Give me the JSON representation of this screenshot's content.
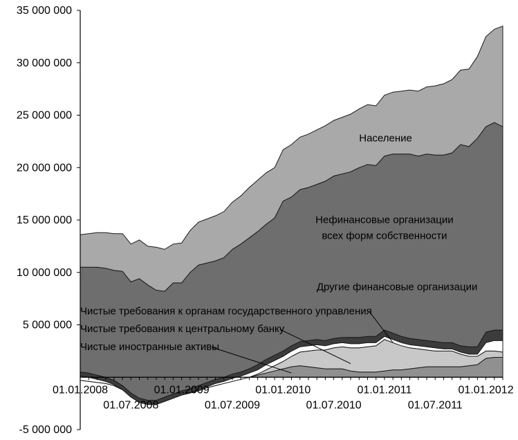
{
  "chart_data": {
    "type": "area",
    "stacked": true,
    "ylim": [
      -5000000,
      35000000
    ],
    "y_ticks": [
      {
        "value": 35000000,
        "label": "35 000 000"
      },
      {
        "value": 30000000,
        "label": "30 000 000"
      },
      {
        "value": 25000000,
        "label": "25 000 000"
      },
      {
        "value": 20000000,
        "label": "20 000 000"
      },
      {
        "value": 15000000,
        "label": "15 000 000"
      },
      {
        "value": 10000000,
        "label": "10 000 000"
      },
      {
        "value": 5000000,
        "label": "5 000 000"
      },
      {
        "value": -5000000,
        "label": "-5 000 000"
      }
    ],
    "x": [
      "01.01.2008",
      "01.02.2008",
      "01.03.2008",
      "01.04.2008",
      "01.05.2008",
      "01.06.2008",
      "01.07.2008",
      "01.08.2008",
      "01.09.2008",
      "01.10.2008",
      "01.11.2008",
      "01.12.2008",
      "01.01.2009",
      "01.02.2009",
      "01.03.2009",
      "01.04.2009",
      "01.05.2009",
      "01.06.2009",
      "01.07.2009",
      "01.08.2009",
      "01.09.2009",
      "01.10.2009",
      "01.11.2009",
      "01.12.2009",
      "01.01.2010",
      "01.02.2010",
      "01.03.2010",
      "01.04.2010",
      "01.05.2010",
      "01.06.2010",
      "01.07.2010",
      "01.08.2010",
      "01.09.2010",
      "01.10.2010",
      "01.11.2010",
      "01.12.2010",
      "01.01.2011",
      "01.02.2011",
      "01.03.2011",
      "01.04.2011",
      "01.05.2011",
      "01.06.2011",
      "01.07.2011",
      "01.08.2011",
      "01.09.2011",
      "01.10.2011",
      "01.11.2011",
      "01.12.2011",
      "01.01.2012",
      "01.02.2012",
      "01.03.2012"
    ],
    "x_ticks_upper": [
      "01.01.2008",
      "01.01.2009",
      "01.01.2010",
      "01.01.2011",
      "01.01.2012"
    ],
    "x_ticks_lower": [
      "01.07.2008",
      "01.07.2009",
      "01.07.2010",
      "01.07.2011"
    ],
    "series": [
      {
        "name": "Чистые иностранные активы",
        "color": "#909090",
        "values": [
          -300000,
          -400000,
          -500000,
          -600000,
          -800000,
          -1200000,
          -1800000,
          -2200000,
          -2400000,
          -2500000,
          -2300000,
          -2000000,
          -1700000,
          -1500000,
          -1300000,
          -1000000,
          -800000,
          -600000,
          -400000,
          -200000,
          0,
          200000,
          400000,
          600000,
          800000,
          1000000,
          1100000,
          1000000,
          900000,
          800000,
          800000,
          800000,
          600000,
          500000,
          500000,
          500000,
          600000,
          700000,
          700000,
          800000,
          900000,
          1000000,
          1000000,
          1000000,
          1000000,
          1000000,
          1100000,
          1200000,
          1800000,
          1900000,
          1900000
        ]
      },
      {
        "name": "Чистые требования к центральному банку",
        "color": "#c8c8c8",
        "values": [
          0,
          0,
          0,
          0,
          0,
          0,
          0,
          0,
          0,
          0,
          0,
          0,
          0,
          0,
          0,
          0,
          0,
          0,
          0,
          0,
          0,
          100000,
          300000,
          500000,
          700000,
          1000000,
          1300000,
          1500000,
          1700000,
          1800000,
          2000000,
          2100000,
          2200000,
          2300000,
          2400000,
          2500000,
          3000000,
          2600000,
          2300000,
          2000000,
          1800000,
          1600000,
          1500000,
          1500000,
          1500000,
          1200000,
          900000,
          800000,
          700000,
          600000,
          500000
        ]
      },
      {
        "name": "Чистые требования к органам государственного управления",
        "color": "#ffffff",
        "values": [
          400000,
          400000,
          300000,
          200000,
          100000,
          0,
          -100000,
          -200000,
          -200000,
          -100000,
          0,
          0,
          0,
          0,
          100000,
          100000,
          200000,
          200000,
          300000,
          300000,
          400000,
          400000,
          500000,
          500000,
          500000,
          500000,
          500000,
          500000,
          500000,
          400000,
          400000,
          400000,
          400000,
          400000,
          400000,
          300000,
          300000,
          300000,
          300000,
          300000,
          300000,
          300000,
          300000,
          200000,
          200000,
          200000,
          200000,
          200000,
          800000,
          1000000,
          1100000
        ]
      },
      {
        "name": "Другие финансовые организации",
        "color": "#3c3c3c",
        "values": [
          400000,
          400000,
          400000,
          400000,
          400000,
          400000,
          400000,
          400000,
          400000,
          400000,
          400000,
          400000,
          400000,
          400000,
          400000,
          400000,
          400000,
          400000,
          400000,
          400000,
          400000,
          500000,
          500000,
          500000,
          500000,
          500000,
          500000,
          500000,
          500000,
          500000,
          500000,
          500000,
          600000,
          600000,
          600000,
          600000,
          600000,
          600000,
          600000,
          600000,
          600000,
          600000,
          600000,
          600000,
          600000,
          600000,
          700000,
          700000,
          1000000,
          1000000,
          1000000
        ]
      },
      {
        "name": "Нефинансовые организации всех форм собственности",
        "color": "#6e6e6e",
        "values": [
          10000000,
          10100000,
          10300000,
          10400000,
          10500000,
          10900000,
          10600000,
          11400000,
          11000000,
          10500000,
          10100000,
          10600000,
          10300000,
          11100000,
          11500000,
          11400000,
          11300000,
          11400000,
          11900000,
          12200000,
          12500000,
          12700000,
          12900000,
          13100000,
          14300000,
          14200000,
          14500000,
          14600000,
          14800000,
          15200000,
          15500000,
          15600000,
          15800000,
          16200000,
          16400000,
          16300000,
          16600000,
          17100000,
          17400000,
          17600000,
          17500000,
          17800000,
          17800000,
          17900000,
          18100000,
          19200000,
          19100000,
          19900000,
          19600000,
          19800000,
          19400000
        ]
      },
      {
        "name": "Население",
        "color": "#a9a9a9",
        "values": [
          3100000,
          3200000,
          3300000,
          3400000,
          3500000,
          3600000,
          3600000,
          3700000,
          3700000,
          4100000,
          4000000,
          3700000,
          3800000,
          4000000,
          4100000,
          4200000,
          4300000,
          4400000,
          4500000,
          4600000,
          4800000,
          4900000,
          4900000,
          4800000,
          4900000,
          5000000,
          5000000,
          5100000,
          5200000,
          5300000,
          5300000,
          5400000,
          5500000,
          5600000,
          5700000,
          5700000,
          5800000,
          5900000,
          6000000,
          6100000,
          6200000,
          6400000,
          6600000,
          6800000,
          7000000,
          7100000,
          7400000,
          7800000,
          8600000,
          8900000,
          9600000
        ]
      }
    ],
    "annotations": [
      {
        "text": "Население",
        "x": "01.10.2010",
        "y": 22500000,
        "anchor": "start"
      },
      {
        "text": "Нефинансовые организации",
        "x": "01.01.2011",
        "y": 14700000,
        "anchor": "middle"
      },
      {
        "text": "всех форм собственности",
        "x": "01.01.2011",
        "y": 13200000,
        "anchor": "middle"
      },
      {
        "text": "Другие финансовые организации",
        "x": "01.12.2011",
        "y": 8300000,
        "anchor": "end"
      },
      {
        "text": "Чистые требования к органам государственного управления",
        "x": "01.01.2008",
        "y": 6000000,
        "anchor": "start",
        "leader_to": {
          "x": "01.02.2011",
          "y": 3300000
        }
      },
      {
        "text": "Чистые требования к центральному банку",
        "x": "01.01.2008",
        "y": 4300000,
        "anchor": "start",
        "leader_to": {
          "x": "01.09.2010",
          "y": 1300000
        }
      },
      {
        "text": "Чистые иностранные активы",
        "x": "01.01.2008",
        "y": 2600000,
        "anchor": "start",
        "leader_to": {
          "x": "01.02.2010",
          "y": 400000
        }
      }
    ]
  }
}
